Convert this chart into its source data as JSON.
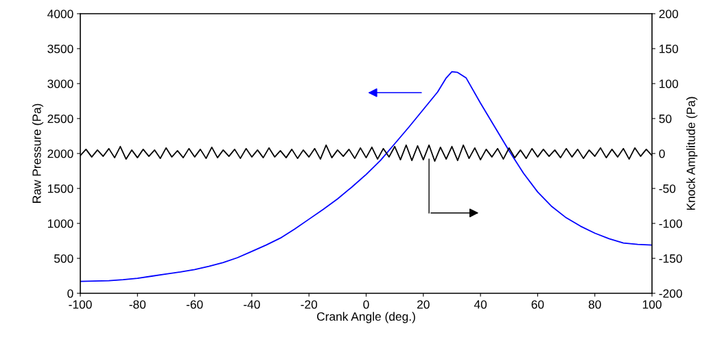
{
  "chart_data": {
    "type": "line",
    "xlabel": "Crank Angle (deg.)",
    "ylabel": "Raw Pressure (Pa)",
    "y2label": "Knock Amplitude (Pa)",
    "xlim": [
      -100,
      100
    ],
    "xticks": [
      -100,
      -80,
      -60,
      -40,
      -20,
      0,
      20,
      40,
      60,
      80,
      100
    ],
    "ylim": [
      0,
      4000
    ],
    "yticks": [
      0,
      500,
      1000,
      1500,
      2000,
      2500,
      3000,
      3500,
      4000
    ],
    "y2lim": [
      -200,
      200
    ],
    "y2ticks": [
      -200,
      -150,
      -100,
      -50,
      0,
      50,
      100,
      150,
      200
    ],
    "grid": false,
    "legend": false,
    "marker": "none",
    "line_style": "solid",
    "series": [
      {
        "color": "#0000ff",
        "x": [
          -100,
          -95,
          -90,
          -85,
          -80,
          -75,
          -70,
          -65,
          -60,
          -55,
          -50,
          -45,
          -40,
          -35,
          -30,
          -25,
          -20,
          -15,
          -10,
          -5,
          0,
          5,
          10,
          15,
          20,
          25,
          28,
          30,
          32,
          35,
          40,
          45,
          50,
          55,
          60,
          65,
          70,
          75,
          80,
          85,
          90,
          95,
          100
        ],
        "values": [
          170,
          175,
          180,
          195,
          215,
          245,
          275,
          305,
          340,
          385,
          440,
          510,
          600,
          690,
          790,
          920,
          1060,
          1200,
          1350,
          1520,
          1700,
          1900,
          2140,
          2380,
          2630,
          2880,
          3080,
          3170,
          3160,
          3080,
          2720,
          2380,
          2040,
          1720,
          1450,
          1240,
          1080,
          960,
          860,
          780,
          720,
          700,
          690
        ]
      },
      {
        "color": "#000000",
        "axis": "y2",
        "x": [
          -100,
          -98,
          -96,
          -94,
          -92,
          -90,
          -88,
          -86,
          -84,
          -82,
          -80,
          -78,
          -76,
          -74,
          -72,
          -70,
          -68,
          -66,
          -64,
          -62,
          -60,
          -58,
          -56,
          -54,
          -52,
          -50,
          -48,
          -46,
          -44,
          -42,
          -40,
          -38,
          -36,
          -34,
          -32,
          -30,
          -28,
          -26,
          -24,
          -22,
          -20,
          -18,
          -16,
          -14,
          -12,
          -10,
          -8,
          -6,
          -4,
          -2,
          0,
          2,
          4,
          6,
          8,
          10,
          12,
          14,
          16,
          18,
          20,
          22,
          24,
          26,
          28,
          30,
          32,
          34,
          36,
          38,
          40,
          42,
          44,
          46,
          48,
          50,
          52,
          54,
          56,
          58,
          60,
          62,
          64,
          66,
          68,
          70,
          72,
          74,
          76,
          78,
          80,
          82,
          84,
          86,
          88,
          90,
          92,
          94,
          96,
          98,
          100
        ],
        "values": [
          -3,
          6,
          -5,
          5,
          -4,
          7,
          -6,
          10,
          -8,
          5,
          -6,
          6,
          -4,
          5,
          -7,
          8,
          -5,
          4,
          -6,
          7,
          -5,
          6,
          -7,
          9,
          -6,
          5,
          -4,
          6,
          -7,
          7,
          -5,
          5,
          -6,
          8,
          -5,
          4,
          -6,
          6,
          -7,
          5,
          -5,
          7,
          -8,
          12,
          -6,
          5,
          -4,
          6,
          -7,
          8,
          -6,
          9,
          -8,
          7,
          -5,
          10,
          -9,
          12,
          -10,
          11,
          -9,
          12,
          -11,
          9,
          -8,
          10,
          -10,
          12,
          -7,
          8,
          -9,
          6,
          -5,
          7,
          -8,
          8,
          -6,
          5,
          -7,
          7,
          -5,
          6,
          -4,
          5,
          -6,
          7,
          -5,
          6,
          -7,
          5,
          -4,
          8,
          -6,
          6,
          -5,
          7,
          -8,
          8,
          -4,
          6,
          -3
        ]
      }
    ]
  }
}
